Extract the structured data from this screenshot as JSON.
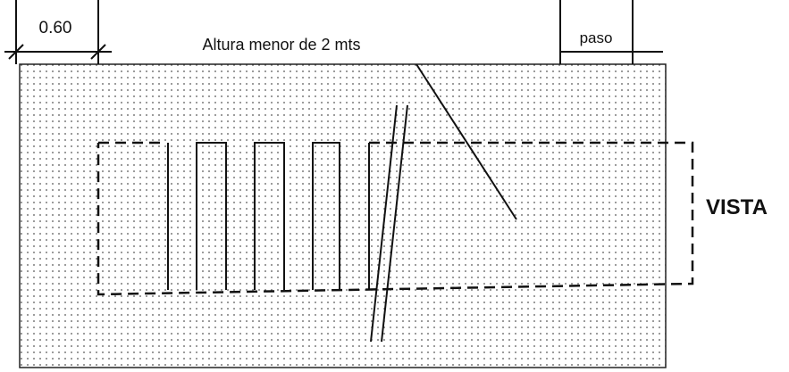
{
  "labels": {
    "dimension": "0.60",
    "note": "Altura menor de 2 mts",
    "step": "paso",
    "view": "VISTA"
  }
}
